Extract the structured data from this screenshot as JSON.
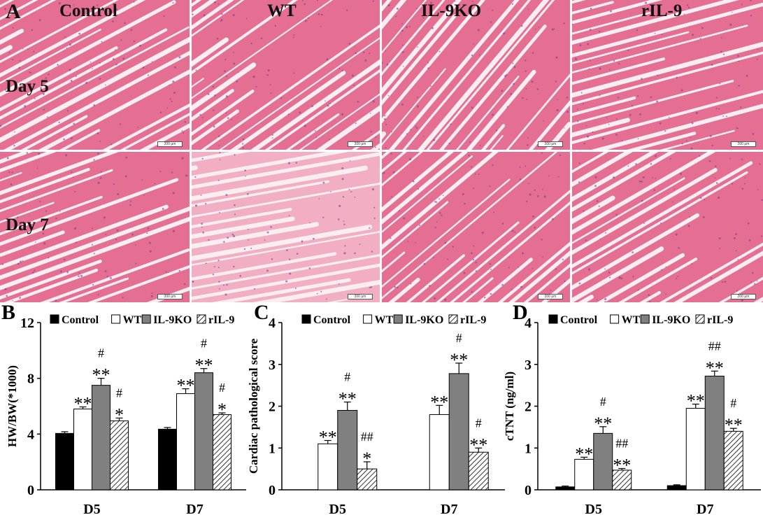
{
  "panel_a": {
    "letter": "A",
    "columns": [
      "Control",
      "WT",
      "IL-9KO",
      "rIL-9"
    ],
    "rows": [
      "Day 5",
      "Day 7"
    ],
    "scale_bar_label": "200 μm"
  },
  "colors": {
    "control": "#000000",
    "wt": "#ffffff",
    "il9ko": "#808080",
    "ril9": "hatch",
    "tissue": "#e8708f",
    "space": "#fbe9ef"
  },
  "chart_data": [
    {
      "panel": "B",
      "type": "bar",
      "title": "",
      "xlabel": "",
      "ylabel": "HW/BW(*1000)",
      "ylim": [
        0,
        12
      ],
      "yticks": [
        0,
        4,
        8,
        12
      ],
      "categories": [
        "D5",
        "D7"
      ],
      "legend": [
        "Control",
        "WT",
        "IL-9KO",
        "rIL-9"
      ],
      "series": [
        {
          "name": "Control",
          "values": [
            4.05,
            4.35
          ],
          "errors": [
            0.12,
            0.12
          ],
          "annotations": [
            "",
            ""
          ]
        },
        {
          "name": "WT",
          "values": [
            5.8,
            6.9
          ],
          "errors": [
            0.15,
            0.35
          ],
          "annotations": [
            "**",
            "**"
          ]
        },
        {
          "name": "IL-9KO",
          "values": [
            7.5,
            8.4
          ],
          "errors": [
            0.5,
            0.3
          ],
          "annotations": [
            "#\n**",
            "#\n**"
          ]
        },
        {
          "name": "rIL-9",
          "values": [
            4.95,
            5.4
          ],
          "errors": [
            0.2,
            0.12
          ],
          "annotations": [
            "#\n*",
            "#\n*"
          ]
        }
      ]
    },
    {
      "panel": "C",
      "type": "bar",
      "title": "",
      "xlabel": "",
      "ylabel": "Cardiac pathological score",
      "ylim": [
        0,
        4
      ],
      "yticks": [
        0,
        1,
        2,
        3,
        4
      ],
      "categories": [
        "D5",
        "D7"
      ],
      "legend": [
        "Control",
        "WT",
        "IL-9KO",
        "rIL-9"
      ],
      "series": [
        {
          "name": "Control",
          "values": [
            0,
            0
          ],
          "errors": [
            0,
            0
          ],
          "annotations": [
            "",
            ""
          ]
        },
        {
          "name": "WT",
          "values": [
            1.1,
            1.8
          ],
          "errors": [
            0.08,
            0.22
          ],
          "annotations": [
            "**",
            "**"
          ]
        },
        {
          "name": "IL-9KO",
          "values": [
            1.9,
            2.78
          ],
          "errors": [
            0.2,
            0.25
          ],
          "annotations": [
            "#\n**",
            "#\n**"
          ]
        },
        {
          "name": "rIL-9",
          "values": [
            0.5,
            0.9
          ],
          "errors": [
            0.17,
            0.1
          ],
          "annotations": [
            "##\n*",
            "#\n**"
          ]
        }
      ]
    },
    {
      "panel": "D",
      "type": "bar",
      "title": "",
      "xlabel": "",
      "ylabel": "cTNT (ng/ml)",
      "ylim": [
        0,
        4
      ],
      "yticks": [
        0,
        1,
        2,
        3,
        4
      ],
      "categories": [
        "D5",
        "D7"
      ],
      "legend": [
        "Control",
        "WT",
        "IL-9KO",
        "rIL-9"
      ],
      "series": [
        {
          "name": "Control",
          "values": [
            0.07,
            0.1
          ],
          "errors": [
            0.02,
            0.02
          ],
          "annotations": [
            "",
            ""
          ]
        },
        {
          "name": "WT",
          "values": [
            0.73,
            1.95
          ],
          "errors": [
            0.05,
            0.1
          ],
          "annotations": [
            "**",
            "**"
          ]
        },
        {
          "name": "IL-9KO",
          "values": [
            1.35,
            2.72
          ],
          "errors": [
            0.16,
            0.12
          ],
          "annotations": [
            "#\n**",
            "##\n**"
          ]
        },
        {
          "name": "rIL-9",
          "values": [
            0.47,
            1.4
          ],
          "errors": [
            0.04,
            0.07
          ],
          "annotations": [
            "##\n**",
            "#\n**"
          ]
        }
      ]
    }
  ]
}
